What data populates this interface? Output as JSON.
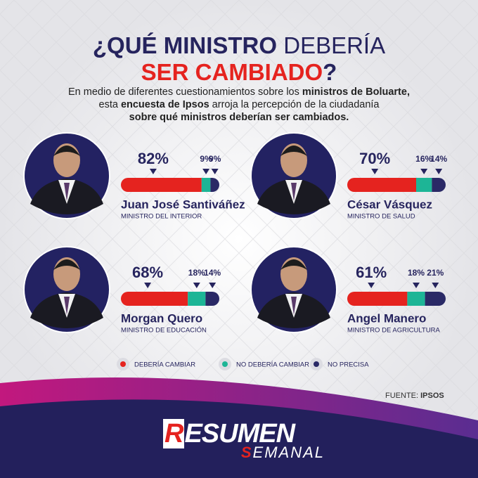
{
  "header": {
    "title_lines": [
      [
        "¿QUÉ MINISTRO",
        "DEBERÍA"
      ],
      [
        "SER CAMBIADO",
        "?"
      ]
    ],
    "subtitle_lines": [
      [
        {
          "text": "En medio de diferentes cuestionamientos sobre los ",
          "bold": false
        },
        {
          "text": "ministros de Boluarte,",
          "bold": true
        }
      ],
      [
        {
          "text": "esta ",
          "bold": false
        },
        {
          "text": "encuesta de Ipsos",
          "bold": true
        },
        {
          "text": " arroja la percepción de la ciudadanía",
          "bold": false
        }
      ],
      [
        {
          "text": "sobre qué ministros deberían ser cambiados.",
          "bold": true
        }
      ]
    ]
  },
  "xlim": [
    0,
    100
  ],
  "ministers": [
    {
      "name": "Juan José Santiváñez",
      "role": "MINISTRO DEL INTERIOR",
      "values": [
        82,
        9,
        9
      ],
      "value_labels": [
        "82%",
        "9%",
        "9%"
      ]
    },
    {
      "name": "César Vásquez",
      "role": "MINISTRO DE SALUD",
      "values": [
        70,
        16,
        14
      ],
      "value_labels": [
        "70%",
        "16%",
        "14%"
      ]
    },
    {
      "name": "Morgan Quero",
      "role": "MINISTRO DE EDUCACIÓN",
      "values": [
        68,
        18,
        14
      ],
      "value_labels": [
        "68%",
        "18%",
        "14%"
      ]
    },
    {
      "name": "Angel Manero",
      "role": "MINISTRO DE AGRICULTURA",
      "values": [
        61,
        18,
        21
      ],
      "value_labels": [
        "61%",
        "18%",
        "21%"
      ]
    }
  ],
  "legend": {
    "series": [
      {
        "name": "DEBERÍA CAMBIAR",
        "color": "#e5231f"
      },
      {
        "name": "NO DEBERÍA CAMBIAR",
        "color": "#1db596"
      },
      {
        "name": "NO PRECISA",
        "color": "#2a2966"
      }
    ]
  },
  "source": {
    "label": "FUENTE:",
    "value": "IPSOS"
  },
  "brand": {
    "top": "RESUMEN",
    "bottom": "SEMANAL"
  }
}
